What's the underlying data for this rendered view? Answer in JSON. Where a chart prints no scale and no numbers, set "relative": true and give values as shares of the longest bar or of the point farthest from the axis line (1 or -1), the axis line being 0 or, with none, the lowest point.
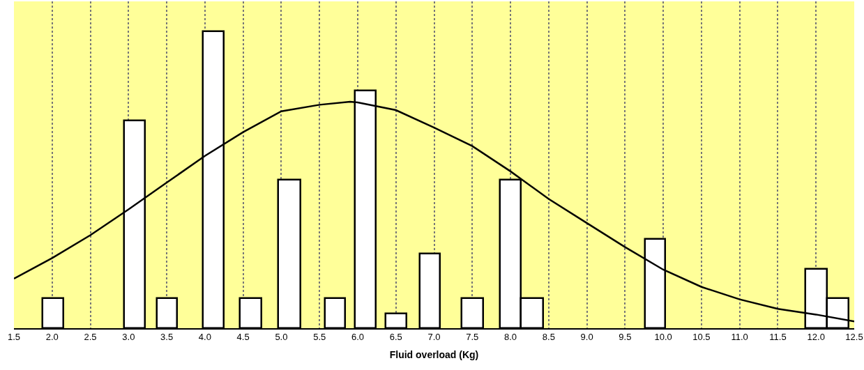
{
  "chart_data": {
    "type": "histogram",
    "relative": true,
    "xlabel": "Fluid overload (Kg)",
    "xlim": [
      1.5,
      12.5
    ],
    "xticks": [
      1.5,
      {
        "value": 2,
        "label": "2.0"
      },
      2.5,
      {
        "value": 3,
        "label": "3.0"
      },
      3.5,
      {
        "value": 4,
        "label": "4.0"
      },
      4.5,
      {
        "value": 5,
        "label": "5.0"
      },
      5.5,
      {
        "value": 6,
        "label": "6.0"
      },
      6.5,
      {
        "value": 7,
        "label": "7.0"
      },
      7.5,
      {
        "value": 8,
        "label": "8.0"
      },
      8.5,
      {
        "value": 9,
        "label": "9.0"
      },
      9.5,
      {
        "value": 10,
        "label": "10.0"
      },
      10.5,
      {
        "value": 11,
        "label": "11.0"
      },
      11.5,
      {
        "value": 12,
        "label": "12.0"
      },
      12.5
    ],
    "grid": "x",
    "series": [
      {
        "color": "#ffffff",
        "bins": [
          1.87,
          2.15,
          2.94,
          3.22,
          3.37,
          3.64,
          3.97,
          4.25,
          4.46,
          4.74,
          4.96,
          5.25,
          5.57,
          5.84,
          5.96,
          6.24,
          6.37,
          6.64,
          6.81,
          7.08,
          7.36,
          7.64,
          7.86,
          8.14,
          8.43,
          9.76,
          10.03,
          11.86,
          12.14,
          12.43
        ],
        "values": [
          0.1,
          0,
          0.7,
          0,
          0.1,
          0,
          1,
          0,
          0.1,
          0,
          0.5,
          0,
          0.1,
          0,
          0.8,
          0,
          0.05,
          0,
          0.25,
          0,
          0.1,
          0,
          0.5,
          0.1,
          0,
          0.3,
          0,
          0.2,
          0.1
        ]
      },
      {
        "type": "line",
        "color": "#000000",
        "x": [
          1.5,
          2.0,
          2.5,
          3.0,
          3.5,
          4.0,
          4.5,
          5.0,
          5.5,
          5.9,
          6.0,
          6.5,
          7.0,
          7.5,
          8.0,
          8.5,
          9.0,
          9.5,
          10.0,
          10.5,
          11.0,
          11.5,
          12.0,
          12.5
        ],
        "values": [
          0.167,
          0.236,
          0.313,
          0.4,
          0.49,
          0.58,
          0.66,
          0.73,
          0.752,
          0.762,
          0.76,
          0.734,
          0.675,
          0.613,
          0.528,
          0.435,
          0.354,
          0.273,
          0.197,
          0.139,
          0.097,
          0.065,
          0.046,
          0.023
        ]
      }
    ]
  }
}
